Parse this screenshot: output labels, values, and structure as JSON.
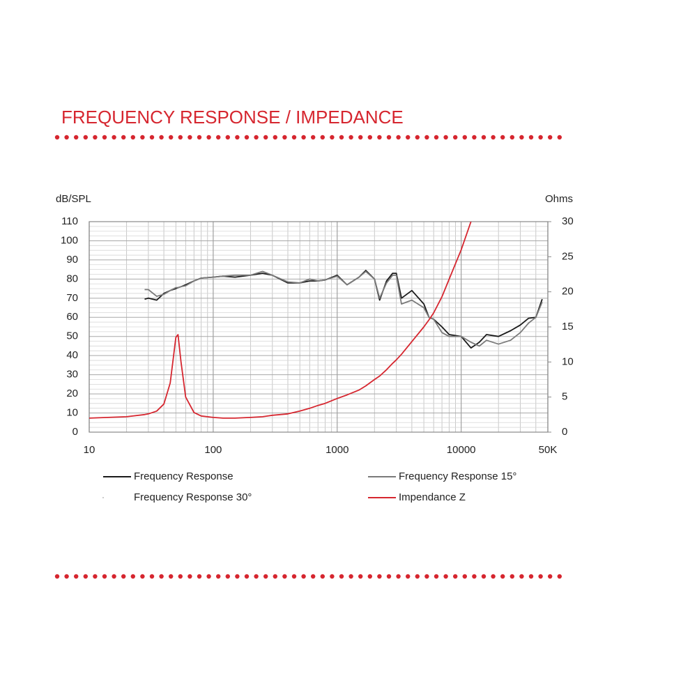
{
  "chart_data": {
    "type": "line",
    "title": "FREQUENCY RESPONSE / IMPEDANCE",
    "y_label": "dB/SPL",
    "y2_label": "Ohms",
    "log_x": true,
    "grid": true,
    "xlim": [
      10,
      50000
    ],
    "xticks": [
      10,
      100,
      1000,
      10000,
      {
        "value": 50000,
        "label": "50K"
      }
    ],
    "ylim": [
      0,
      110
    ],
    "yticks": [
      0,
      10,
      20,
      30,
      40,
      50,
      60,
      70,
      80,
      90,
      100,
      110
    ],
    "y2lim": [
      0,
      30
    ],
    "y2ticks": [
      0,
      5,
      10,
      15,
      20,
      25,
      30
    ],
    "x": [
      10,
      20,
      28,
      30,
      35,
      40,
      45,
      50,
      52,
      55,
      60,
      70,
      80,
      100,
      120,
      150,
      200,
      250,
      300,
      400,
      500,
      600,
      700,
      800,
      1000,
      1200,
      1500,
      1700,
      2000,
      2200,
      2500,
      2800,
      3000,
      3300,
      4000,
      5000,
      5500,
      6000,
      7000,
      8000,
      10000,
      12000,
      14000,
      16000,
      20000,
      25000,
      30000,
      35000,
      40000,
      45000
    ],
    "series": [
      {
        "name": "Frequency Response",
        "color": "#1a1a1a",
        "values": [
          null,
          null,
          69.5,
          70,
          69,
          72.5,
          74,
          75,
          75.5,
          76,
          77,
          79,
          80.5,
          81,
          81.5,
          81,
          82,
          83,
          82,
          78,
          78,
          79,
          79,
          79.5,
          82,
          77,
          81,
          84.5,
          80,
          69,
          79,
          83,
          83,
          70,
          74,
          67,
          60,
          59,
          55,
          51,
          50,
          44,
          47,
          51,
          50,
          53,
          56,
          59.5,
          60,
          69.5
        ]
      },
      {
        "name": "Frequency Response 15°",
        "color": "#7a7a7a",
        "values": [
          null,
          null,
          74.5,
          74.5,
          71,
          72,
          74,
          75.5,
          75.5,
          76,
          76.5,
          79,
          80.5,
          81,
          81.5,
          82,
          82,
          84,
          82,
          78.5,
          78,
          80,
          79,
          79.5,
          81.5,
          77,
          81,
          84,
          80,
          70,
          78,
          82,
          82,
          67,
          69,
          65,
          60,
          59,
          52,
          50,
          50,
          47,
          45,
          48,
          46,
          48,
          52,
          57,
          60,
          68
        ]
      },
      {
        "name": "Frequency Response 30°",
        "color": "#bbbbbb",
        "values": [
          null,
          null,
          null,
          null,
          null,
          null,
          null,
          null,
          null,
          null,
          null,
          null,
          null,
          null,
          null,
          null,
          null,
          null,
          null,
          null,
          null,
          null,
          null,
          null,
          null,
          null,
          null,
          null,
          null,
          null,
          null,
          null,
          null,
          null,
          null,
          null,
          null,
          null,
          null,
          null,
          null,
          null,
          null,
          null,
          null,
          null,
          null,
          null,
          null,
          null
        ]
      },
      {
        "name": "Impendance Z",
        "color": "#d6262f",
        "axis": "y2",
        "values": [
          2.0,
          2.2,
          2.5,
          2.6,
          3.0,
          4.0,
          7.0,
          13.5,
          13.9,
          10,
          5,
          2.8,
          2.3,
          2.1,
          2.0,
          2.0,
          2.1,
          2.2,
          2.4,
          2.6,
          3.0,
          3.4,
          3.8,
          4.1,
          4.8,
          5.3,
          6.0,
          6.6,
          7.5,
          8.0,
          8.9,
          9.8,
          10.3,
          11.1,
          12.9,
          15.0,
          16,
          17.0,
          19.3,
          21.8,
          26,
          30,
          null,
          null,
          null,
          null,
          null,
          null,
          null,
          null
        ]
      }
    ]
  }
}
